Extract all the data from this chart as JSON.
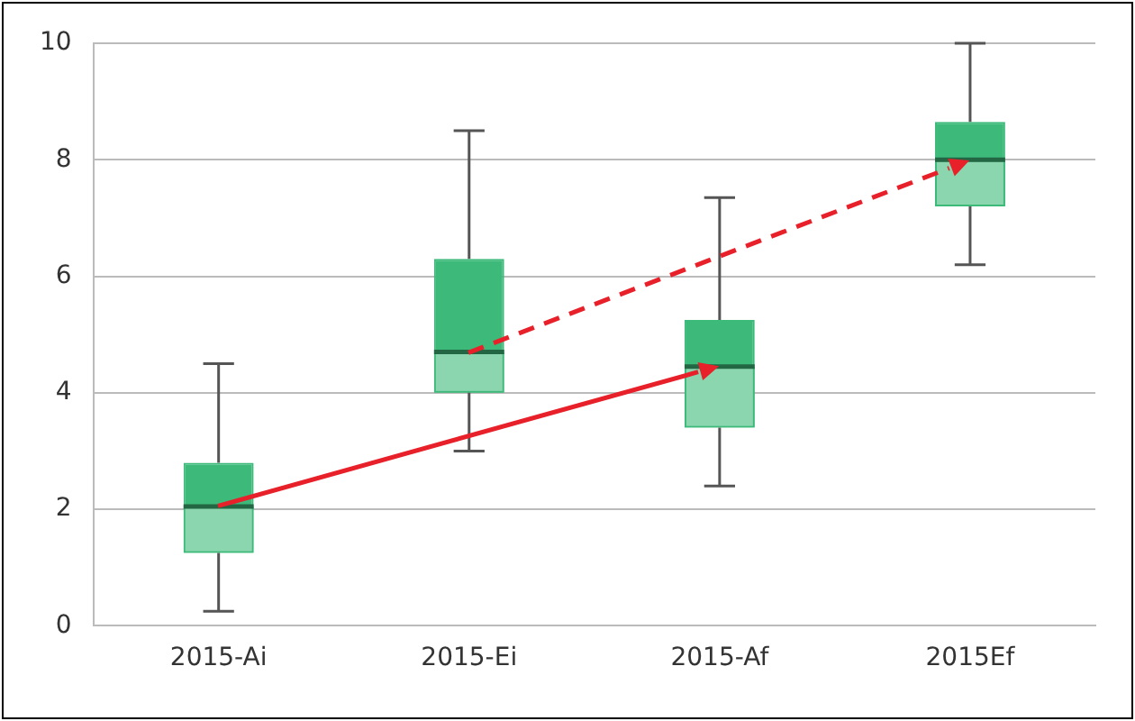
{
  "chart_data": {
    "type": "box",
    "categories": [
      "2015-Ai",
      "2015-Ei",
      "2015-Af",
      "2015Ef"
    ],
    "ylim": [
      0,
      10
    ],
    "yticks": [
      0,
      2,
      4,
      6,
      8,
      10
    ],
    "grid": "y",
    "legend": false,
    "series": [
      {
        "type": "box",
        "color": "#3dba7a",
        "boxes": [
          {
            "low": 0.25,
            "q1": 1.25,
            "median": 2.05,
            "q3": 2.8,
            "high": 4.5
          },
          {
            "low": 3.0,
            "q1": 4.0,
            "median": 4.7,
            "q3": 6.3,
            "high": 8.5
          },
          {
            "low": 2.4,
            "q1": 3.4,
            "median": 4.45,
            "q3": 5.25,
            "high": 7.35
          },
          {
            "low": 6.2,
            "q1": 7.2,
            "median": 8.0,
            "q3": 8.65,
            "high": 10.0
          }
        ]
      }
    ]
  }
}
